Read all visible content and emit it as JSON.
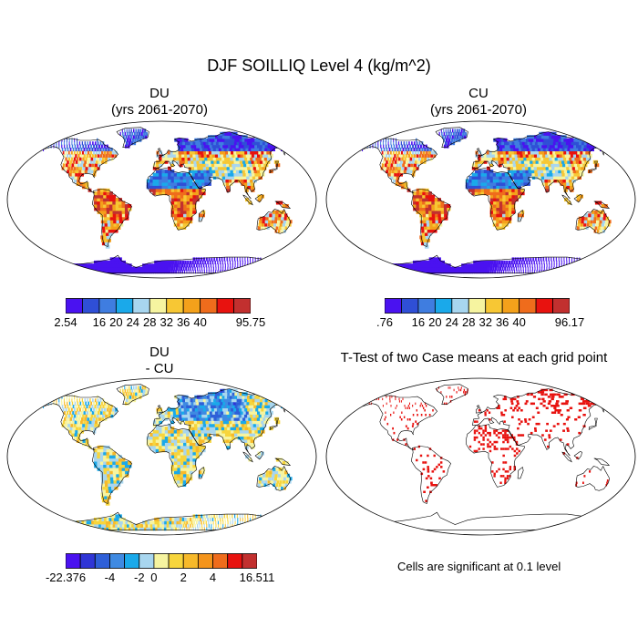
{
  "figure": {
    "title": "DJF SOILLIQ Level 4 (kg/m^2)"
  },
  "panels": [
    {
      "id": "du",
      "title1": "DU",
      "title2": "(yrs 2061-2070)",
      "scheme": "abs"
    },
    {
      "id": "cu",
      "title1": "CU",
      "title2": "(yrs 2061-2070)",
      "scheme": "abs"
    },
    {
      "id": "diff",
      "title1": "DU",
      "title2": "- CU",
      "scheme": "diff"
    },
    {
      "id": "ttest",
      "title1": "T-Test of two Case means at each grid point",
      "title2": "",
      "scheme": "sig"
    }
  ],
  "colorbars": {
    "du": {
      "colors": [
        "#4a12f0",
        "#2f4fd6",
        "#3f7de0",
        "#1aa9ea",
        "#a8d6ef",
        "#f6f4a0",
        "#f7c734",
        "#f4a11b",
        "#ef6c1c",
        "#e8120f",
        "#c2302f"
      ],
      "labels": [
        "2.54",
        "16",
        "20",
        "24",
        "28",
        "32",
        "36",
        "40",
        "95.75"
      ]
    },
    "cu": {
      "colors": [
        "#4a12f0",
        "#2f4fd6",
        "#3f7de0",
        "#1aa9ea",
        "#a8d6ef",
        "#f6f4a0",
        "#f7c734",
        "#f4a11b",
        "#ef6c1c",
        "#e8120f",
        "#c2302f"
      ],
      "labels": [
        ".76",
        "16",
        "20",
        "24",
        "28",
        "32",
        "36",
        "40",
        "96.17"
      ]
    },
    "diff": {
      "colors": [
        "#4a12f0",
        "#2f35d6",
        "#2e5fd8",
        "#3f8ae2",
        "#1aa9ea",
        "#a8d6ef",
        "#f6f4a0",
        "#f7d53c",
        "#f7b92a",
        "#f4941b",
        "#ef6c1c",
        "#e8120f",
        "#c2302f"
      ],
      "labels": [
        "-22.376",
        "-4",
        "-2",
        "0",
        "2",
        "4",
        "16.511"
      ]
    }
  },
  "significance_note": "Cells are significant at 0.1 level"
}
